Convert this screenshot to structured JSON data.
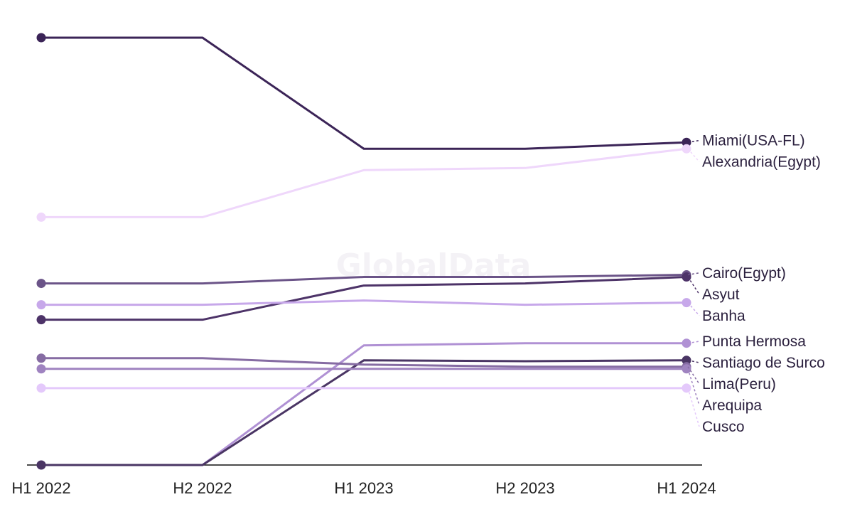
{
  "watermark": "GlobalData",
  "chart_data": {
    "type": "line",
    "title": "",
    "xlabel": "",
    "ylabel": "",
    "categories": [
      "H1 2022",
      "H2 2022",
      "H1 2023",
      "H2 2023",
      "H1 2024"
    ],
    "ylim": [
      0,
      100
    ],
    "grid": false,
    "legend": "direct labels at right end of each line",
    "series": [
      {
        "name": "Miami(USA-FL)",
        "color": "#3b2457",
        "values": [
          100,
          100,
          74,
          74,
          75.5
        ]
      },
      {
        "name": "Alexandria(Egypt)",
        "color": "#efd7fb",
        "values": [
          58,
          58,
          69,
          69.5,
          74
        ]
      },
      {
        "name": "Cairo(Egypt)",
        "color": "#6b5488",
        "values": [
          42.5,
          42.5,
          44,
          44,
          44.5
        ]
      },
      {
        "name": "Asyut",
        "color": "#4d3368",
        "values": [
          34,
          34,
          42,
          42.5,
          44
        ]
      },
      {
        "name": "Banha",
        "color": "#c7a8ea",
        "values": [
          37.5,
          37.5,
          38.5,
          37.5,
          38
        ]
      },
      {
        "name": "Punta Hermosa",
        "color": "#b091d4",
        "values": [
          0,
          0,
          28,
          28.5,
          28.5
        ]
      },
      {
        "name": "Santiago de Surco",
        "color": "#4a3564",
        "values": [
          0,
          0,
          24.5,
          24.3,
          24.5
        ]
      },
      {
        "name": "Lima(Peru)",
        "color": "#866ca3",
        "values": [
          25,
          25,
          23.5,
          23,
          23
        ]
      },
      {
        "name": "Arequipa",
        "color": "#9f83c0",
        "values": [
          22.5,
          22.5,
          22.5,
          22.5,
          22.5
        ]
      },
      {
        "name": "Cusco",
        "color": "#e4c9fb",
        "values": [
          18,
          18,
          18,
          18,
          18
        ]
      }
    ]
  }
}
